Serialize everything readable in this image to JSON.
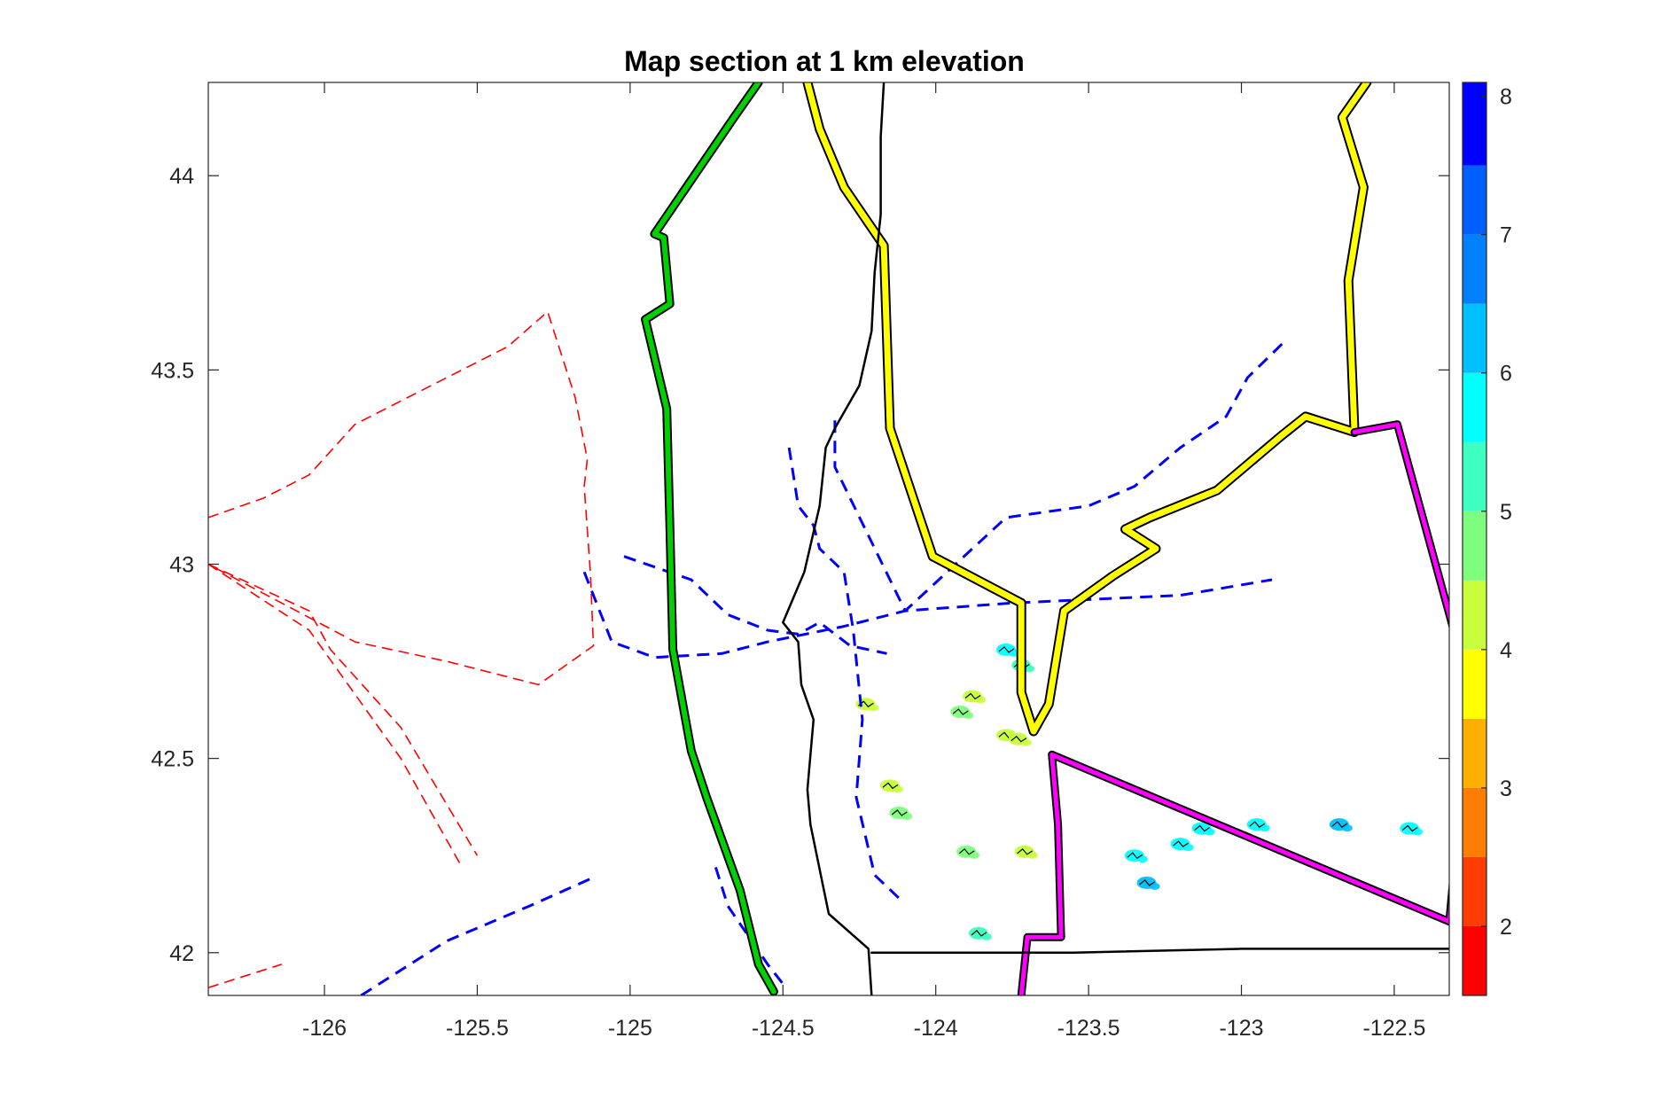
{
  "chart_data": {
    "type": "map",
    "title": "Map section at 1 km elevation",
    "xlim": [
      -126.38,
      -122.32
    ],
    "ylim": [
      41.89,
      44.24
    ],
    "xticks": [
      -126,
      -125.5,
      -125,
      -124.5,
      -124,
      -123.5,
      -123,
      -122.5
    ],
    "yticks": [
      42,
      42.5,
      43,
      43.5,
      44
    ],
    "colorbar": {
      "clim": [
        1.5,
        8.1
      ],
      "ticks": [
        2,
        3,
        4,
        5,
        6,
        7,
        8
      ],
      "bands": [
        {
          "from": 1.5,
          "to": 2.0,
          "color": "#ff0000"
        },
        {
          "from": 2.0,
          "to": 2.5,
          "color": "#ff3d00"
        },
        {
          "from": 2.5,
          "to": 3.0,
          "color": "#ff7d00"
        },
        {
          "from": 3.0,
          "to": 3.5,
          "color": "#ffb000"
        },
        {
          "from": 3.5,
          "to": 4.0,
          "color": "#ffff00"
        },
        {
          "from": 4.0,
          "to": 4.5,
          "color": "#c8ff3a"
        },
        {
          "from": 4.5,
          "to": 5.0,
          "color": "#7dff7d"
        },
        {
          "from": 5.0,
          "to": 5.5,
          "color": "#3dffc0"
        },
        {
          "from": 5.5,
          "to": 6.0,
          "color": "#00ffff"
        },
        {
          "from": 6.0,
          "to": 6.5,
          "color": "#00c0ff"
        },
        {
          "from": 6.5,
          "to": 7.0,
          "color": "#0080ff"
        },
        {
          "from": 7.0,
          "to": 7.5,
          "color": "#0060ff"
        },
        {
          "from": 7.5,
          "to": 8.1,
          "color": "#0000ff"
        }
      ]
    },
    "lines": [
      {
        "name": "green-line",
        "color": "#00d000",
        "casing": true,
        "width": 6,
        "points": [
          [
            -124.58,
            44.24
          ],
          [
            -124.66,
            44.15
          ],
          [
            -124.92,
            43.85
          ],
          [
            -124.89,
            43.84
          ],
          [
            -124.87,
            43.67
          ],
          [
            -124.95,
            43.63
          ],
          [
            -124.88,
            43.4
          ],
          [
            -124.87,
            43.1
          ],
          [
            -124.86,
            42.78
          ],
          [
            -124.8,
            42.52
          ],
          [
            -124.75,
            42.4
          ],
          [
            -124.64,
            42.16
          ],
          [
            -124.58,
            41.97
          ],
          [
            -124.53,
            41.9
          ]
        ]
      },
      {
        "name": "yellow-line",
        "color": "#ffff00",
        "casing": true,
        "width": 7,
        "points": [
          [
            -124.42,
            44.24
          ],
          [
            -124.38,
            44.12
          ],
          [
            -124.3,
            43.97
          ],
          [
            -124.17,
            43.82
          ],
          [
            -124.15,
            43.35
          ],
          [
            -124.01,
            43.02
          ],
          [
            -123.72,
            42.9
          ],
          [
            -123.72,
            42.67
          ],
          [
            -123.68,
            42.57
          ],
          [
            -123.63,
            42.64
          ],
          [
            -123.58,
            42.88
          ],
          [
            -123.42,
            42.97
          ],
          [
            -123.28,
            43.04
          ],
          [
            -123.38,
            43.09
          ],
          [
            -123.3,
            43.12
          ],
          [
            -123.08,
            43.19
          ],
          [
            -122.87,
            43.33
          ],
          [
            -122.79,
            43.38
          ],
          [
            -122.63,
            43.34
          ],
          [
            -122.65,
            43.73
          ],
          [
            -122.6,
            43.97
          ],
          [
            -122.67,
            44.15
          ],
          [
            -122.59,
            44.24
          ]
        ]
      },
      {
        "name": "magenta-line",
        "color": "#ff00ff",
        "casing": true,
        "width": 5,
        "points": [
          [
            -122.63,
            43.34
          ],
          [
            -122.49,
            43.36
          ],
          [
            -122.25,
            42.67
          ],
          [
            -122.32,
            42.08
          ],
          [
            -123.62,
            42.51
          ],
          [
            -123.6,
            42.33
          ],
          [
            -123.59,
            42.04
          ],
          [
            -123.7,
            42.04
          ],
          [
            -123.72,
            41.89
          ]
        ]
      },
      {
        "name": "black-line",
        "color": "#000000",
        "casing": false,
        "width": 2.5,
        "points": [
          [
            -124.17,
            44.24
          ],
          [
            -124.18,
            44.1
          ],
          [
            -124.18,
            43.9
          ],
          [
            -124.2,
            43.75
          ],
          [
            -124.21,
            43.6
          ],
          [
            -124.25,
            43.46
          ],
          [
            -124.33,
            43.35
          ],
          [
            -124.36,
            43.3
          ],
          [
            -124.38,
            43.15
          ],
          [
            -124.43,
            42.98
          ],
          [
            -124.5,
            42.85
          ],
          [
            -124.45,
            42.8
          ],
          [
            -124.44,
            42.69
          ],
          [
            -124.4,
            42.6
          ],
          [
            -124.42,
            42.42
          ],
          [
            -124.41,
            42.33
          ],
          [
            -124.35,
            42.1
          ],
          [
            -124.22,
            42.01
          ],
          [
            -124.21,
            41.89
          ]
        ]
      },
      {
        "name": "black-line-2",
        "color": "#000000",
        "casing": false,
        "width": 2.5,
        "points": [
          [
            -124.21,
            42.0
          ],
          [
            -123.55,
            42.0
          ],
          [
            -123.0,
            42.01
          ],
          [
            -122.32,
            42.01
          ]
        ]
      }
    ],
    "dashed": [
      {
        "name": "red-dashed",
        "color": "#ff0000",
        "width": 1.6,
        "dash": "12 7",
        "points": [
          [
            -126.38,
            43.12
          ],
          [
            -126.2,
            43.17
          ],
          [
            -126.05,
            43.23
          ],
          [
            -125.9,
            43.36
          ],
          [
            -125.4,
            43.56
          ],
          [
            -125.27,
            43.65
          ],
          [
            -125.18,
            43.43
          ],
          [
            -125.14,
            43.27
          ],
          [
            -125.15,
            43.2
          ],
          [
            -125.13,
            42.98
          ],
          [
            -125.12,
            42.79
          ],
          [
            -125.3,
            42.69
          ],
          [
            -125.6,
            42.75
          ],
          [
            -125.9,
            42.8
          ],
          [
            -126.38,
            43.0
          ]
        ]
      },
      {
        "name": "red-dashed-2",
        "color": "#ff0000",
        "width": 1.6,
        "dash": "12 7",
        "points": [
          [
            -126.38,
            43.0
          ],
          [
            -126.05,
            42.88
          ],
          [
            -125.98,
            42.78
          ],
          [
            -125.75,
            42.58
          ],
          [
            -125.5,
            42.25
          ]
        ]
      },
      {
        "name": "red-dashed-3",
        "color": "#ff0000",
        "width": 1.6,
        "dash": "12 7",
        "points": [
          [
            -126.38,
            43.0
          ],
          [
            -126.05,
            42.83
          ],
          [
            -125.95,
            42.72
          ],
          [
            -125.75,
            42.5
          ],
          [
            -125.55,
            42.22
          ]
        ]
      },
      {
        "name": "red-dashed-4",
        "color": "#ff0000",
        "width": 1.6,
        "dash": "12 7",
        "points": [
          [
            -126.38,
            41.91
          ],
          [
            -126.14,
            41.97
          ]
        ]
      },
      {
        "name": "blue-dashed",
        "color": "#0000ff",
        "width": 3,
        "dash": "14 9",
        "points": [
          [
            -125.15,
            42.98
          ],
          [
            -125.06,
            42.8
          ],
          [
            -124.92,
            42.76
          ],
          [
            -124.7,
            42.77
          ],
          [
            -124.55,
            42.8
          ],
          [
            -124.3,
            42.84
          ],
          [
            -124.1,
            42.88
          ],
          [
            -123.75,
            42.9
          ],
          [
            -123.2,
            42.92
          ],
          [
            -122.9,
            42.96
          ]
        ]
      },
      {
        "name": "blue-dashed-2",
        "color": "#0000ff",
        "width": 3,
        "dash": "14 9",
        "points": [
          [
            -125.02,
            43.02
          ],
          [
            -124.8,
            42.96
          ],
          [
            -124.68,
            42.87
          ],
          [
            -124.55,
            42.83
          ],
          [
            -124.45,
            42.82
          ],
          [
            -124.38,
            42.85
          ],
          [
            -124.28,
            42.79
          ],
          [
            -124.16,
            42.77
          ]
        ]
      },
      {
        "name": "blue-dashed-3",
        "color": "#0000ff",
        "width": 3,
        "dash": "14 9",
        "points": [
          [
            -124.48,
            43.3
          ],
          [
            -124.45,
            43.15
          ],
          [
            -124.4,
            43.1
          ],
          [
            -124.38,
            43.04
          ],
          [
            -124.3,
            42.98
          ],
          [
            -124.27,
            42.83
          ],
          [
            -124.24,
            42.6
          ],
          [
            -124.26,
            42.4
          ],
          [
            -124.2,
            42.2
          ],
          [
            -124.12,
            42.14
          ]
        ]
      },
      {
        "name": "blue-dashed-4",
        "color": "#0000ff",
        "width": 3,
        "dash": "14 9",
        "points": [
          [
            -124.33,
            43.37
          ],
          [
            -124.33,
            43.25
          ],
          [
            -124.1,
            42.88
          ],
          [
            -123.77,
            43.12
          ],
          [
            -123.5,
            43.15
          ],
          [
            -123.35,
            43.2
          ],
          [
            -123.2,
            43.3
          ],
          [
            -123.05,
            43.38
          ],
          [
            -122.98,
            43.48
          ],
          [
            -122.85,
            43.58
          ]
        ]
      },
      {
        "name": "blue-dashed-5",
        "color": "#0000ff",
        "width": 3,
        "dash": "14 9",
        "points": [
          [
            -125.88,
            41.89
          ],
          [
            -125.6,
            42.03
          ],
          [
            -125.33,
            42.12
          ],
          [
            -125.13,
            42.19
          ]
        ]
      },
      {
        "name": "blue-dashed-6",
        "color": "#0000ff",
        "width": 3,
        "dash": "14 9",
        "points": [
          [
            -124.72,
            42.22
          ],
          [
            -124.68,
            42.12
          ],
          [
            -124.55,
            41.97
          ],
          [
            -124.5,
            41.92
          ]
        ]
      }
    ],
    "patches": [
      {
        "lon": -123.77,
        "lat": 42.78,
        "value": 5.6
      },
      {
        "lon": -123.72,
        "lat": 42.74,
        "value": 5.3
      },
      {
        "lon": -123.88,
        "lat": 42.66,
        "value": 4.4
      },
      {
        "lon": -123.92,
        "lat": 42.62,
        "value": 4.6
      },
      {
        "lon": -123.77,
        "lat": 42.56,
        "value": 4.4
      },
      {
        "lon": -123.73,
        "lat": 42.55,
        "value": 4.2
      },
      {
        "lon": -124.15,
        "lat": 42.43,
        "value": 4.2
      },
      {
        "lon": -124.12,
        "lat": 42.36,
        "value": 4.8
      },
      {
        "lon": -123.9,
        "lat": 42.26,
        "value": 4.7
      },
      {
        "lon": -123.71,
        "lat": 42.26,
        "value": 4.4
      },
      {
        "lon": -123.35,
        "lat": 42.25,
        "value": 5.7
      },
      {
        "lon": -123.31,
        "lat": 42.18,
        "value": 6.4
      },
      {
        "lon": -122.95,
        "lat": 42.33,
        "value": 5.9
      },
      {
        "lon": -122.68,
        "lat": 42.33,
        "value": 6.1
      },
      {
        "lon": -122.45,
        "lat": 42.32,
        "value": 5.9
      },
      {
        "lon": -123.86,
        "lat": 42.05,
        "value": 5.3
      },
      {
        "lon": -123.13,
        "lat": 42.32,
        "value": 5.8
      },
      {
        "lon": -123.2,
        "lat": 42.28,
        "value": 5.7
      },
      {
        "lon": -124.23,
        "lat": 42.64,
        "value": 4.3
      }
    ]
  }
}
